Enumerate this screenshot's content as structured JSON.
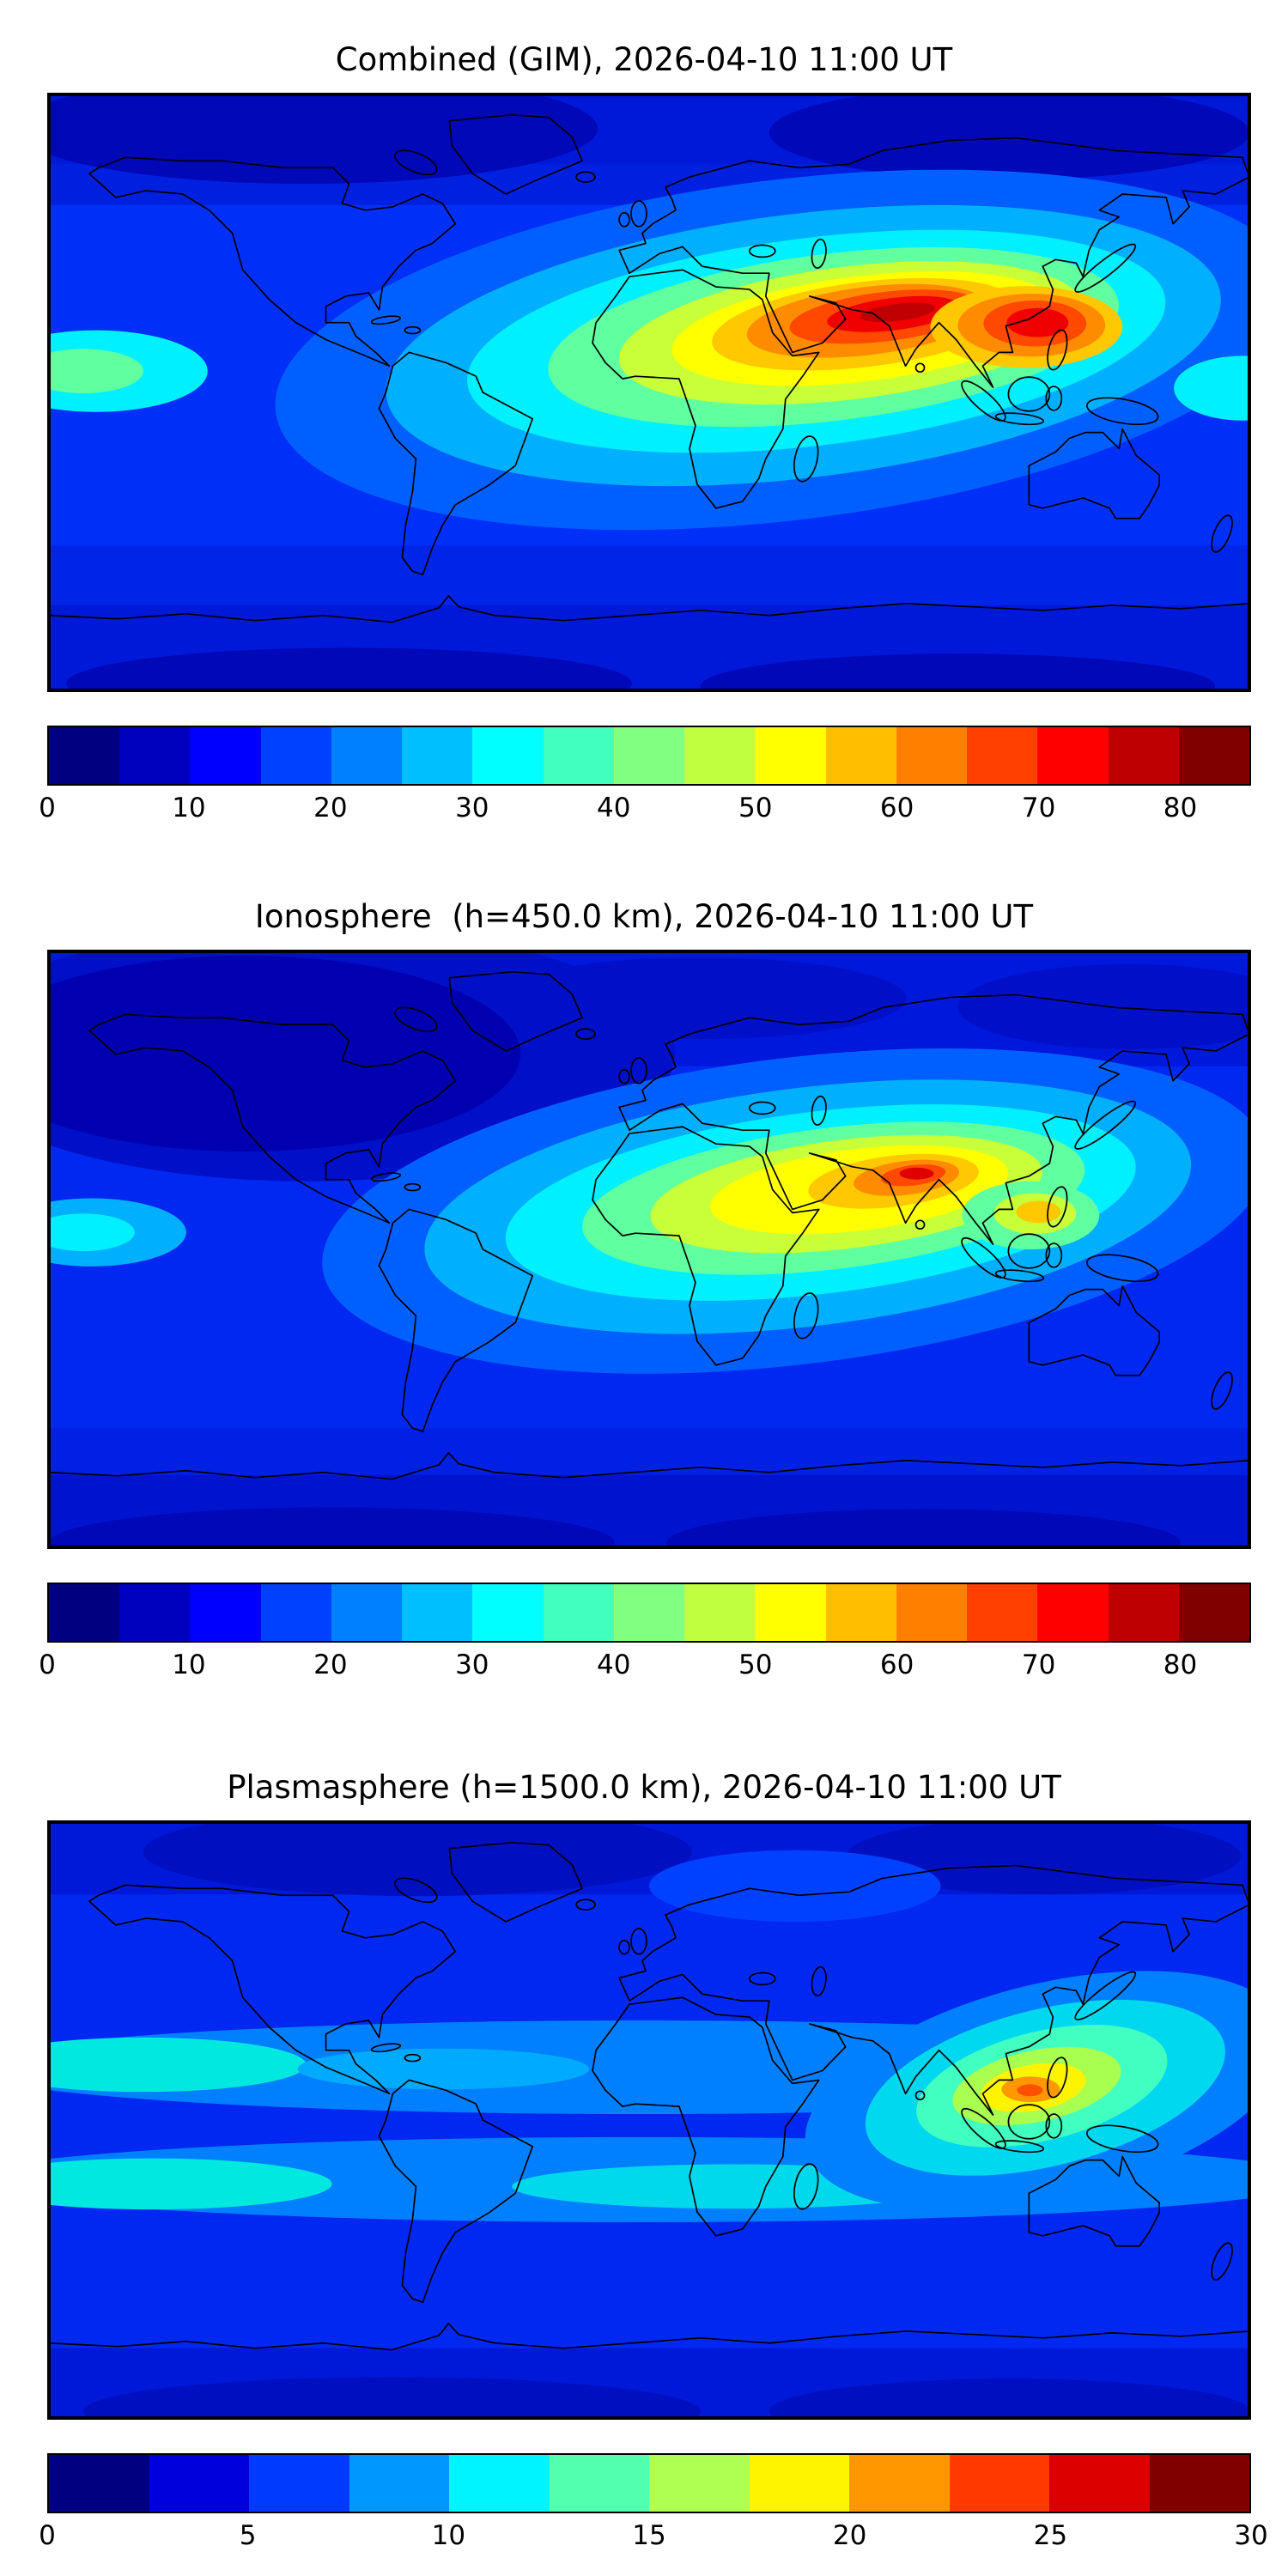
{
  "figure": {
    "background": "#ffffff",
    "font_color": "#000000",
    "frame_color": "#000000"
  },
  "chart_data": [
    {
      "type": "heatmap",
      "variant": "filled_contour_world_map",
      "title": "Combined (GIM), 2026-04-10 11:00 UT",
      "layer": "Combined (GIM)",
      "timestamp": "2026-04-10 11:00 UT",
      "projection": "equirectangular",
      "lon_range": [
        -180,
        180
      ],
      "lat_range": [
        -90,
        90
      ],
      "colormap": "jet",
      "value_range": [
        0,
        85
      ],
      "contour_interval": 5,
      "colorbar_orientation": "horizontal",
      "colorbar_ticks": [
        0,
        10,
        20,
        30,
        40,
        50,
        60,
        70,
        80
      ],
      "colorbar_colors": [
        "#000080",
        "#0000bf",
        "#0000ff",
        "#0040ff",
        "#0080ff",
        "#00bfff",
        "#00ffff",
        "#40ffbf",
        "#80ff80",
        "#bfff40",
        "#ffff00",
        "#ffbf00",
        "#ff8000",
        "#ff4000",
        "#ff0000",
        "#bf0000",
        "#800000"
      ],
      "coastline_color": "#000000",
      "features": [
        {
          "name": "equatorial-anomaly-main-peak",
          "lon": 70,
          "lat": 24,
          "approx_value": 85
        },
        {
          "name": "east-asia-secondary-peak",
          "lon": 117,
          "lat": 20,
          "approx_value": 78
        },
        {
          "name": "daytime-enhancement-band",
          "lon_span": [
            -30,
            140
          ],
          "lat_span": [
            -10,
            35
          ],
          "approx_value": 40
        },
        {
          "name": "west-pacific-equatorial-patch",
          "lon": -172,
          "lat": 7,
          "approx_value": 38
        },
        {
          "name": "night-polar-minimum",
          "lon": -140,
          "lat": 75,
          "approx_value": 6
        }
      ]
    },
    {
      "type": "heatmap",
      "variant": "filled_contour_world_map",
      "title": "Ionosphere  (h=450.0 km), 2026-04-10 11:00 UT",
      "layer": "Ionosphere (h=450.0 km)",
      "timestamp": "2026-04-10 11:00 UT",
      "projection": "equirectangular",
      "lon_range": [
        -180,
        180
      ],
      "lat_range": [
        -90,
        90
      ],
      "colormap": "jet",
      "value_range": [
        0,
        85
      ],
      "contour_interval": 5,
      "colorbar_orientation": "horizontal",
      "colorbar_ticks": [
        0,
        10,
        20,
        30,
        40,
        50,
        60,
        70,
        80
      ],
      "colorbar_colors": [
        "#000080",
        "#0000bf",
        "#0000ff",
        "#0040ff",
        "#0080ff",
        "#00bfff",
        "#00ffff",
        "#40ffbf",
        "#80ff80",
        "#bfff40",
        "#ffff00",
        "#ffbf00",
        "#ff8000",
        "#ff4000",
        "#ff0000",
        "#bf0000",
        "#800000"
      ],
      "coastline_color": "#000000",
      "features": [
        {
          "name": "equatorial-anomaly-peak",
          "lon": 73,
          "lat": 23,
          "approx_value": 80
        },
        {
          "name": "southeast-asia-patch",
          "lon": 116,
          "lat": 11,
          "approx_value": 55
        },
        {
          "name": "daytime-enhancement-band",
          "lon_span": [
            -20,
            130
          ],
          "lat_span": [
            -10,
            33
          ],
          "approx_value": 35
        },
        {
          "name": "north-pacific-minimum",
          "lon": -150,
          "lat": 55,
          "approx_value": 4
        }
      ]
    },
    {
      "type": "heatmap",
      "variant": "filled_contour_world_map",
      "title": "Plasmasphere (h=1500.0 km), 2026-04-10 11:00 UT",
      "layer": "Plasmasphere (h=1500.0 km)",
      "timestamp": "2026-04-10 11:00 UT",
      "projection": "equirectangular",
      "lon_range": [
        -180,
        180
      ],
      "lat_range": [
        -90,
        90
      ],
      "colormap": "jet",
      "value_range": [
        0,
        30
      ],
      "contour_interval": 2.5,
      "colorbar_orientation": "horizontal",
      "colorbar_ticks": [
        0,
        5,
        10,
        15,
        20,
        25,
        30
      ],
      "colorbar_colors": [
        "#000080",
        "#0000dc",
        "#003aff",
        "#0097ff",
        "#00f4ff",
        "#51ffae",
        "#aeff51",
        "#fff400",
        "#ff9700",
        "#ff3a00",
        "#dc0000",
        "#800000"
      ],
      "coastline_color": "#000000",
      "features": [
        {
          "name": "southeast-asia-peak",
          "lon": 115,
          "lat": 10,
          "approx_value": 27
        },
        {
          "name": "north-tropical-band",
          "lat": 18,
          "lon_span": [
            -180,
            180
          ],
          "approx_value": 12
        },
        {
          "name": "south-tropical-band",
          "lat": -18,
          "lon_span": [
            -180,
            180
          ],
          "approx_value": 12
        },
        {
          "name": "polar-minimum",
          "lat": 80,
          "approx_value": 4
        }
      ]
    }
  ]
}
